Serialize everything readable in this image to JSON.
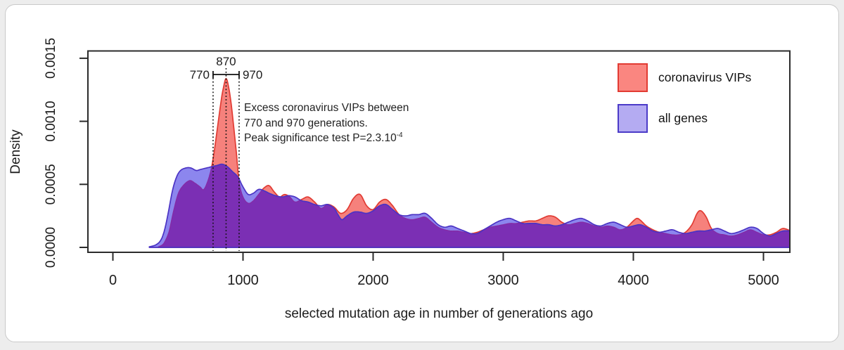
{
  "figure": {
    "note_lines": [
      "Excess coronavirus VIPs between",
      "770 and 970 generations.",
      "Peak significance test P=2.3.10"
    ],
    "note_sup": "-4"
  },
  "chart_data": {
    "type": "area",
    "subtype": "overlaid-density-curves",
    "title": "",
    "xlabel": "selected mutation age in number of generations ago",
    "ylabel": "Density",
    "xlim": [
      -200,
      5210
    ],
    "ylim": [
      0,
      0.00158
    ],
    "grid": false,
    "x_ticks": [
      0,
      1000,
      2000,
      3000,
      4000,
      5000
    ],
    "y_ticks": [
      0,
      0.0005,
      0.001,
      0.0015
    ],
    "y_tick_labels": [
      "0.0000",
      "0.0005",
      "0.0010",
      "0.0015"
    ],
    "legend_position": "top-right-inside",
    "legend": [
      {
        "label": "coronavirus VIPs",
        "swatch_fill": "#FA8680",
        "swatch_border": "#E23B33"
      },
      {
        "label": "all genes",
        "swatch_fill": "#B4ABF2",
        "swatch_border": "#4B3BC8"
      }
    ],
    "overlap_fill": "#7B2FB4",
    "overlap_edge": "#852BA4",
    "frame_color": "#2b2b2b",
    "annotations": {
      "peak_x": 870,
      "peak_label": "870",
      "range_low": 770,
      "range_low_label": "770",
      "range_high": 970,
      "range_high_label": "970",
      "dotted_lines_x": [
        770,
        870,
        970
      ],
      "note": "Excess coronavirus VIPs between 770 and 970 generations. Peak significance test P=2.3.10-4",
      "p_value": "2.3.10-4"
    },
    "series": [
      {
        "name": "coronavirus VIPs",
        "fill": "#F6817C",
        "stroke": "#E13B33",
        "points": [
          [
            350,
            5e-06
          ],
          [
            390,
            3e-05
          ],
          [
            430,
            0.00012
          ],
          [
            460,
            0.00026
          ],
          [
            500,
            0.00042
          ],
          [
            540,
            0.00049
          ],
          [
            590,
            0.00053
          ],
          [
            630,
            0.00051
          ],
          [
            670,
            0.00048
          ],
          [
            700,
            0.00046
          ],
          [
            740,
            0.00056
          ],
          [
            770,
            0.0007
          ],
          [
            800,
            0.00092
          ],
          [
            830,
            0.00115
          ],
          [
            850,
            0.00127
          ],
          [
            870,
            0.00134
          ],
          [
            890,
            0.00127
          ],
          [
            910,
            0.00113
          ],
          [
            930,
            0.00094
          ],
          [
            950,
            0.00074
          ],
          [
            970,
            0.00052
          ],
          [
            1000,
            0.0004
          ],
          [
            1040,
            0.00035
          ],
          [
            1080,
            0.00037
          ],
          [
            1120,
            0.00042
          ],
          [
            1160,
            0.00047
          ],
          [
            1200,
            0.00049
          ],
          [
            1240,
            0.00044
          ],
          [
            1280,
            0.0004
          ],
          [
            1320,
            0.00042
          ],
          [
            1360,
            0.0004
          ],
          [
            1400,
            0.00036
          ],
          [
            1450,
            0.00038
          ],
          [
            1500,
            0.0004
          ],
          [
            1550,
            0.00036
          ],
          [
            1600,
            0.00031
          ],
          [
            1650,
            0.00034
          ],
          [
            1700,
            0.00032
          ],
          [
            1750,
            0.00027
          ],
          [
            1800,
            0.0003
          ],
          [
            1850,
            0.00039
          ],
          [
            1900,
            0.00042
          ],
          [
            1950,
            0.00033
          ],
          [
            2000,
            0.0003
          ],
          [
            2050,
            0.00036
          ],
          [
            2100,
            0.00038
          ],
          [
            2150,
            0.00033
          ],
          [
            2200,
            0.00026
          ],
          [
            2250,
            0.00023
          ],
          [
            2300,
            0.00022
          ],
          [
            2350,
            0.00023
          ],
          [
            2400,
            0.00024
          ],
          [
            2450,
            0.0002
          ],
          [
            2500,
            0.00016
          ],
          [
            2550,
            0.00014
          ],
          [
            2600,
            0.00013
          ],
          [
            2650,
            0.00013
          ],
          [
            2700,
            0.00012
          ],
          [
            2750,
            0.00011
          ],
          [
            2800,
            0.00012
          ],
          [
            2850,
            0.00014
          ],
          [
            2900,
            0.00016
          ],
          [
            2950,
            0.00017
          ],
          [
            3000,
            0.00018
          ],
          [
            3050,
            0.00019
          ],
          [
            3100,
            0.00019
          ],
          [
            3150,
            0.0002
          ],
          [
            3200,
            0.00021
          ],
          [
            3250,
            0.00021
          ],
          [
            3300,
            0.00023
          ],
          [
            3350,
            0.00025
          ],
          [
            3400,
            0.00024
          ],
          [
            3450,
            0.0002
          ],
          [
            3500,
            0.00018
          ],
          [
            3550,
            0.00019
          ],
          [
            3600,
            0.0002
          ],
          [
            3650,
            0.00019
          ],
          [
            3700,
            0.00017
          ],
          [
            3750,
            0.00016
          ],
          [
            3800,
            0.00017
          ],
          [
            3850,
            0.00016
          ],
          [
            3900,
            0.00014
          ],
          [
            3950,
            0.00016
          ],
          [
            4000,
            0.00021
          ],
          [
            4030,
            0.00023
          ],
          [
            4060,
            0.00021
          ],
          [
            4100,
            0.00017
          ],
          [
            4150,
            0.00014
          ],
          [
            4200,
            0.00012
          ],
          [
            4250,
            0.00011
          ],
          [
            4300,
            0.0001
          ],
          [
            4350,
            0.0001
          ],
          [
            4400,
            0.00012
          ],
          [
            4450,
            0.00018
          ],
          [
            4490,
            0.00027
          ],
          [
            4520,
            0.00029
          ],
          [
            4560,
            0.00024
          ],
          [
            4600,
            0.00015
          ],
          [
            4650,
            0.00011
          ],
          [
            4700,
            0.0001
          ],
          [
            4750,
            9e-05
          ],
          [
            4800,
            0.0001
          ],
          [
            4850,
            0.00012
          ],
          [
            4900,
            0.00014
          ],
          [
            4950,
            0.00012
          ],
          [
            5000,
            0.0001
          ],
          [
            5050,
            0.0001
          ],
          [
            5100,
            0.00012
          ],
          [
            5150,
            0.00015
          ],
          [
            5210,
            0.00013
          ]
        ]
      },
      {
        "name": "all genes",
        "fill": "#8C86EE",
        "stroke": "#4B33C4",
        "points": [
          [
            280,
            5e-06
          ],
          [
            330,
            2e-05
          ],
          [
            370,
            6e-05
          ],
          [
            400,
            0.00015
          ],
          [
            430,
            0.0003
          ],
          [
            460,
            0.00046
          ],
          [
            490,
            0.00056
          ],
          [
            520,
            0.00061
          ],
          [
            560,
            0.00063
          ],
          [
            600,
            0.00063
          ],
          [
            640,
            0.00061
          ],
          [
            680,
            0.00062
          ],
          [
            720,
            0.00063
          ],
          [
            760,
            0.00064
          ],
          [
            800,
            0.00065
          ],
          [
            840,
            0.00066
          ],
          [
            880,
            0.00064
          ],
          [
            920,
            0.0006
          ],
          [
            960,
            0.00056
          ],
          [
            1000,
            0.00048
          ],
          [
            1040,
            0.00042
          ],
          [
            1080,
            0.00043
          ],
          [
            1120,
            0.00046
          ],
          [
            1160,
            0.00045
          ],
          [
            1200,
            0.00043
          ],
          [
            1250,
            0.00041
          ],
          [
            1300,
            0.0004
          ],
          [
            1350,
            0.00041
          ],
          [
            1400,
            0.0004
          ],
          [
            1450,
            0.00037
          ],
          [
            1500,
            0.00036
          ],
          [
            1550,
            0.00034
          ],
          [
            1600,
            0.00033
          ],
          [
            1650,
            0.00034
          ],
          [
            1700,
            0.00031
          ],
          [
            1730,
            0.00026
          ],
          [
            1760,
            0.00022
          ],
          [
            1800,
            0.00025
          ],
          [
            1850,
            0.00028
          ],
          [
            1900,
            0.00028
          ],
          [
            1950,
            0.00027
          ],
          [
            2000,
            0.00029
          ],
          [
            2050,
            0.00033
          ],
          [
            2100,
            0.00034
          ],
          [
            2150,
            0.0003
          ],
          [
            2200,
            0.00026
          ],
          [
            2250,
            0.00025
          ],
          [
            2300,
            0.00026
          ],
          [
            2350,
            0.00026
          ],
          [
            2400,
            0.00027
          ],
          [
            2450,
            0.00023
          ],
          [
            2500,
            0.00018
          ],
          [
            2550,
            0.00016
          ],
          [
            2600,
            0.00017
          ],
          [
            2650,
            0.00015
          ],
          [
            2700,
            0.00013
          ],
          [
            2750,
            0.00011
          ],
          [
            2800,
            0.00011
          ],
          [
            2850,
            0.00014
          ],
          [
            2900,
            0.00017
          ],
          [
            2950,
            0.0002
          ],
          [
            3000,
            0.00022
          ],
          [
            3050,
            0.00023
          ],
          [
            3100,
            0.00021
          ],
          [
            3150,
            0.00019
          ],
          [
            3200,
            0.00019
          ],
          [
            3250,
            0.00019
          ],
          [
            3300,
            0.00018
          ],
          [
            3350,
            0.00018
          ],
          [
            3400,
            0.00017
          ],
          [
            3450,
            0.00018
          ],
          [
            3500,
            0.0002
          ],
          [
            3550,
            0.00022
          ],
          [
            3600,
            0.00023
          ],
          [
            3650,
            0.00021
          ],
          [
            3700,
            0.00018
          ],
          [
            3750,
            0.00017
          ],
          [
            3800,
            0.00019
          ],
          [
            3850,
            0.0002
          ],
          [
            3900,
            0.00018
          ],
          [
            3950,
            0.00016
          ],
          [
            4000,
            0.00017
          ],
          [
            4050,
            0.00018
          ],
          [
            4100,
            0.00016
          ],
          [
            4150,
            0.00013
          ],
          [
            4200,
            0.00012
          ],
          [
            4250,
            0.00013
          ],
          [
            4300,
            0.00014
          ],
          [
            4350,
            0.00012
          ],
          [
            4400,
            0.00011
          ],
          [
            4450,
            0.00012
          ],
          [
            4500,
            0.00013
          ],
          [
            4550,
            0.00013
          ],
          [
            4600,
            0.00014
          ],
          [
            4650,
            0.00015
          ],
          [
            4700,
            0.00013
          ],
          [
            4750,
            0.00011
          ],
          [
            4800,
            0.00012
          ],
          [
            4850,
            0.00014
          ],
          [
            4900,
            0.00016
          ],
          [
            4950,
            0.00015
          ],
          [
            5000,
            0.00011
          ],
          [
            5050,
            9e-05
          ],
          [
            5100,
            0.00011
          ],
          [
            5150,
            0.00013
          ],
          [
            5210,
            0.00013
          ]
        ]
      }
    ]
  }
}
